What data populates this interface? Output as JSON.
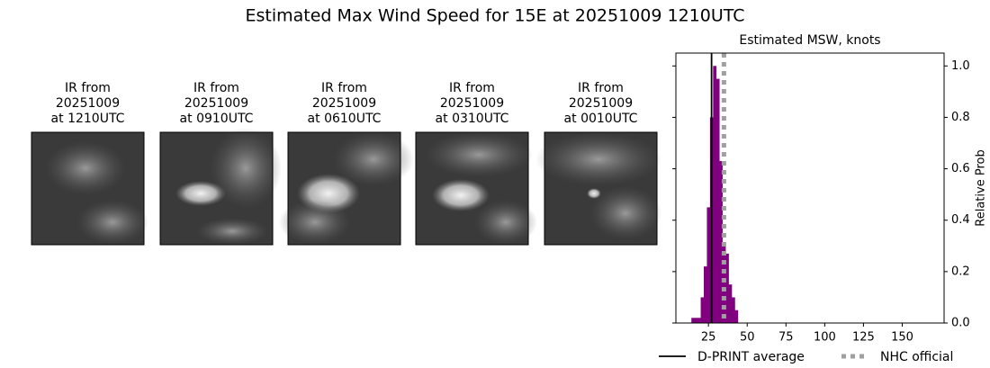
{
  "title": "Estimated Max Wind Speed for 15E at 20251009 1210UTC",
  "panels": [
    {
      "lines": [
        "IR from",
        "20251009",
        "at 1210UTC"
      ]
    },
    {
      "lines": [
        "IR from",
        "20251009",
        "at 0910UTC"
      ]
    },
    {
      "lines": [
        "IR from",
        "20251009",
        "at 0610UTC"
      ]
    },
    {
      "lines": [
        "IR from",
        "20251009",
        "at 0310UTC"
      ]
    },
    {
      "lines": [
        "IR from",
        "20251009",
        "at 0010UTC"
      ]
    }
  ],
  "chart_data": {
    "type": "histogram",
    "title": "Estimated MSW, knots",
    "y_label": "Relative Prob",
    "bins": [
      14,
      16,
      18,
      20,
      22,
      24,
      26,
      28,
      30,
      32,
      34,
      36,
      38,
      40,
      42,
      44
    ],
    "values": [
      0.02,
      0.02,
      0.02,
      0.1,
      0.22,
      0.45,
      0.8,
      1.0,
      0.95,
      0.63,
      0.3,
      0.27,
      0.15,
      0.1,
      0.05
    ],
    "color": "#800080",
    "xlim": [
      4,
      177
    ],
    "xticks": [
      25,
      50,
      75,
      100,
      125,
      150
    ],
    "ylim": [
      0,
      1.05
    ],
    "yticks": [
      {
        "value": 0,
        "label": "0.0"
      },
      0.2,
      0.4,
      0.6,
      0.8,
      {
        "value": 1,
        "label": "1.0"
      }
    ],
    "lines": [
      {
        "name": "D-PRINT average",
        "value": 27,
        "color": "#000000",
        "style": "solid"
      },
      {
        "name": "NHC official",
        "value": 35,
        "color": "#a0a0a0",
        "style": "dotted"
      }
    ],
    "legend": "bottom"
  }
}
